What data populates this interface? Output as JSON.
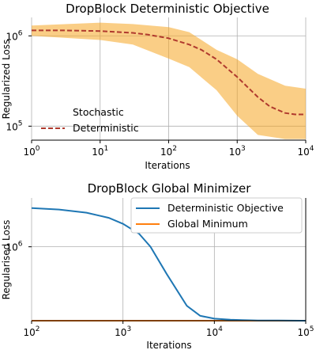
{
  "chart_data": [
    {
      "type": "line",
      "title": "DropBlock Deterministic Objective",
      "xlabel": "Iterations",
      "ylabel": "Regularized Loss",
      "xscale": "log",
      "yscale": "log",
      "xlim": [
        1,
        10000
      ],
      "ylim": [
        70000,
        1600000
      ],
      "grid": true,
      "legend_placement": "lower-left",
      "x_ticks": [
        {
          "value": 1,
          "base": "10",
          "exp": "0"
        },
        {
          "value": 10,
          "base": "10",
          "exp": "1"
        },
        {
          "value": 100,
          "base": "10",
          "exp": "2"
        },
        {
          "value": 1000,
          "base": "10",
          "exp": "3"
        },
        {
          "value": 10000,
          "base": "10",
          "exp": "4"
        }
      ],
      "y_ticks": [
        {
          "value": 100000,
          "base": "10",
          "exp": "5"
        },
        {
          "value": 1000000,
          "base": "10",
          "exp": "6"
        }
      ],
      "series": [
        {
          "name": "Stochastic",
          "color": "#f5a623",
          "style": "band",
          "x": [
            1,
            10,
            30,
            100,
            200,
            500,
            1000,
            2000,
            5000,
            10000
          ],
          "y_low": [
            1000000,
            900000,
            800000,
            560000,
            450000,
            250000,
            130000,
            80000,
            72000,
            72000
          ],
          "y_high": [
            1300000,
            1400000,
            1350000,
            1250000,
            1100000,
            700000,
            550000,
            380000,
            280000,
            260000
          ]
        },
        {
          "name": "Deterministic",
          "color": "#b03a2e",
          "style": "dashed",
          "x": [
            1,
            3,
            10,
            30,
            50,
            100,
            200,
            300,
            500,
            1000,
            2000,
            3000,
            5000,
            7000,
            10000
          ],
          "y": [
            1150000,
            1150000,
            1130000,
            1080000,
            1030000,
            940000,
            800000,
            700000,
            550000,
            350000,
            210000,
            165000,
            140000,
            135000,
            135000
          ]
        }
      ]
    },
    {
      "type": "line",
      "title": "DropBlock Global Minimizer",
      "xlabel": "Iterations",
      "ylabel": "Regularised Loss",
      "xscale": "log",
      "yscale": "log",
      "xlim": [
        100,
        100000
      ],
      "ylim": [
        150000,
        3500000
      ],
      "grid": true,
      "legend_placement": "upper-right",
      "x_ticks": [
        {
          "value": 100,
          "base": "10",
          "exp": "2"
        },
        {
          "value": 1000,
          "base": "10",
          "exp": "3"
        },
        {
          "value": 10000,
          "base": "10",
          "exp": "4"
        },
        {
          "value": 100000,
          "base": "10",
          "exp": "5"
        }
      ],
      "y_ticks": [
        {
          "value": 1000000,
          "base": "10",
          "exp": "6"
        }
      ],
      "series": [
        {
          "name": "Deterministic Objective",
          "color": "#1f77b4",
          "x": [
            100,
            200,
            400,
            700,
            1000,
            1500,
            2000,
            3000,
            5000,
            7000,
            10000,
            15000,
            20000,
            30000,
            50000,
            100000
          ],
          "y": [
            2700000,
            2600000,
            2400000,
            2100000,
            1800000,
            1400000,
            1000000,
            500000,
            220000,
            170000,
            158000,
            154000,
            152000,
            151000,
            150500,
            150000
          ]
        },
        {
          "name": "Global Minimum",
          "color": "#ff7f0e",
          "x": [
            100,
            100000
          ],
          "y": [
            150000,
            150000
          ]
        }
      ]
    }
  ]
}
